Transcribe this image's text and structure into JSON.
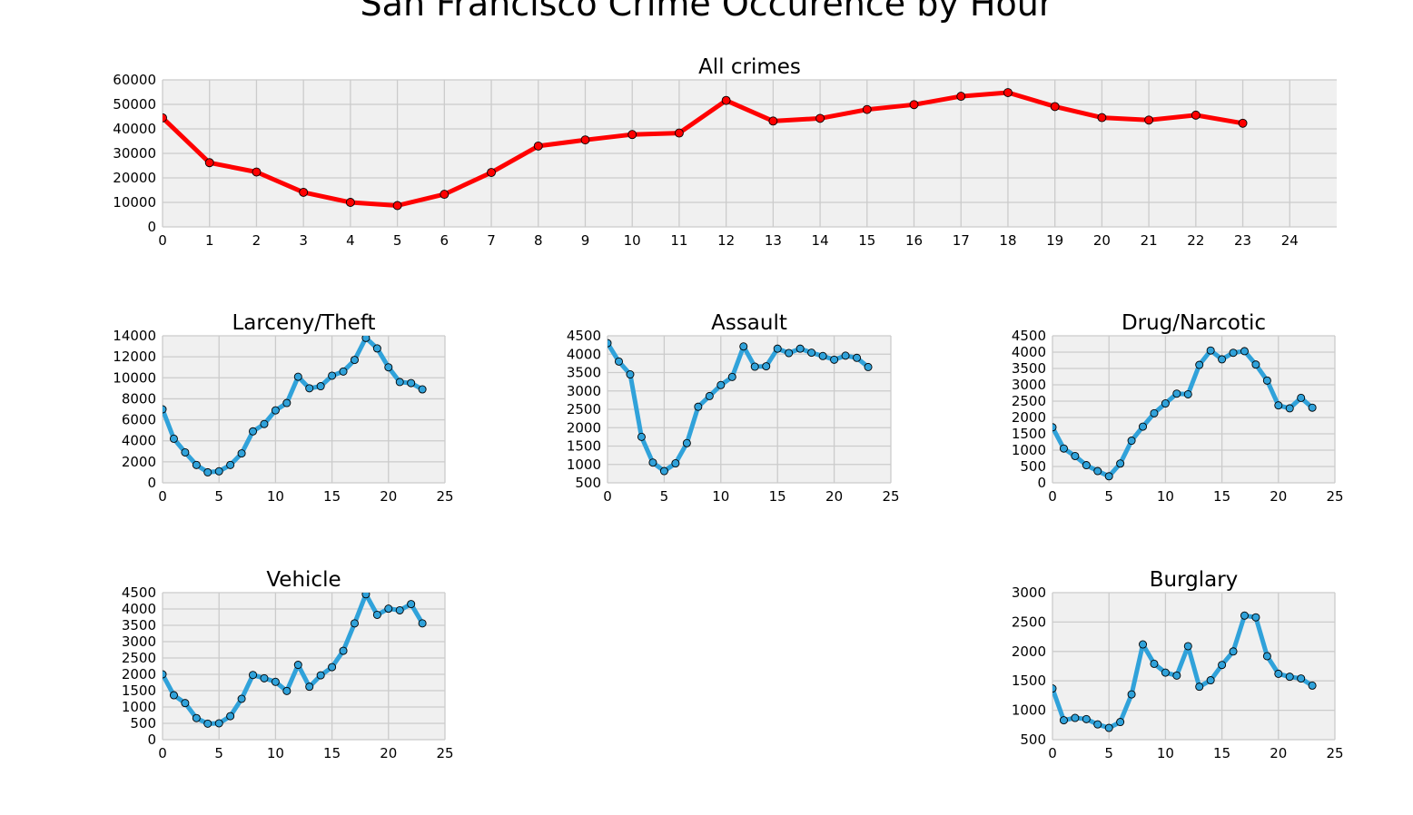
{
  "figure_title": "San Francisco Crime Occurence by Hour",
  "chart_data": [
    {
      "type": "line",
      "title": "All crimes",
      "color": "#ff0000",
      "x": [
        0,
        1,
        2,
        3,
        4,
        5,
        6,
        7,
        8,
        9,
        10,
        11,
        12,
        13,
        14,
        15,
        16,
        17,
        18,
        19,
        20,
        21,
        22,
        23
      ],
      "values": [
        44500,
        26200,
        22400,
        14100,
        10000,
        8700,
        13300,
        22200,
        33000,
        35500,
        37700,
        38300,
        51600,
        43200,
        44300,
        47900,
        49900,
        53300,
        54800,
        49100,
        44600,
        43600,
        45600,
        42300
      ],
      "xlim": [
        0,
        25
      ],
      "ylim": [
        0,
        60000
      ],
      "xticks": [
        0,
        1,
        2,
        3,
        4,
        5,
        6,
        7,
        8,
        9,
        10,
        11,
        12,
        13,
        14,
        15,
        16,
        17,
        18,
        19,
        20,
        21,
        22,
        23,
        24
      ],
      "yticks": [
        0,
        10000,
        20000,
        30000,
        40000,
        50000,
        60000
      ],
      "grid": true
    },
    {
      "type": "line",
      "title": "Larceny/Theft",
      "color": "#30a2da",
      "x": [
        0,
        1,
        2,
        3,
        4,
        5,
        6,
        7,
        8,
        9,
        10,
        11,
        12,
        13,
        14,
        15,
        16,
        17,
        18,
        19,
        20,
        21,
        22,
        23
      ],
      "values": [
        7000,
        4200,
        2900,
        1700,
        1000,
        1100,
        1700,
        2800,
        4900,
        5600,
        6900,
        7600,
        10100,
        9000,
        9200,
        10200,
        10600,
        11700,
        13800,
        12800,
        11000,
        9600,
        9500,
        8900
      ],
      "xlim": [
        0,
        25
      ],
      "ylim": [
        0,
        14000
      ],
      "xticks": [
        0,
        5,
        10,
        15,
        20,
        25
      ],
      "yticks": [
        0,
        2000,
        4000,
        6000,
        8000,
        10000,
        12000,
        14000
      ],
      "grid": true
    },
    {
      "type": "line",
      "title": "Assault",
      "color": "#30a2da",
      "x": [
        0,
        1,
        2,
        3,
        4,
        5,
        6,
        7,
        8,
        9,
        10,
        11,
        12,
        13,
        14,
        15,
        16,
        17,
        18,
        19,
        20,
        21,
        22,
        23
      ],
      "values": [
        4300,
        3800,
        3450,
        1750,
        1050,
        820,
        1030,
        1580,
        2570,
        2860,
        3160,
        3380,
        4210,
        3660,
        3670,
        4150,
        4030,
        4150,
        4040,
        3950,
        3850,
        3960,
        3900,
        3650
      ],
      "xlim": [
        0,
        25
      ],
      "ylim": [
        500,
        4500
      ],
      "xticks": [
        0,
        5,
        10,
        15,
        20,
        25
      ],
      "yticks": [
        500,
        1000,
        1500,
        2000,
        2500,
        3000,
        3500,
        4000,
        4500
      ],
      "grid": true
    },
    {
      "type": "line",
      "title": "Drug/Narcotic",
      "color": "#30a2da",
      "x": [
        0,
        1,
        2,
        3,
        4,
        5,
        6,
        7,
        8,
        9,
        10,
        11,
        12,
        13,
        14,
        15,
        16,
        17,
        18,
        19,
        20,
        21,
        22,
        23
      ],
      "values": [
        1700,
        1050,
        820,
        540,
        360,
        200,
        590,
        1290,
        1720,
        2130,
        2430,
        2730,
        2710,
        3610,
        4050,
        3780,
        3980,
        4030,
        3620,
        3130,
        2370,
        2280,
        2600,
        2300
      ],
      "xlim": [
        0,
        25
      ],
      "ylim": [
        0,
        4500
      ],
      "xticks": [
        0,
        5,
        10,
        15,
        20,
        25
      ],
      "yticks": [
        0,
        500,
        1000,
        1500,
        2000,
        2500,
        3000,
        3500,
        4000,
        4500
      ],
      "grid": true
    },
    {
      "type": "line",
      "title": "Vehicle",
      "color": "#30a2da",
      "x": [
        0,
        1,
        2,
        3,
        4,
        5,
        6,
        7,
        8,
        9,
        10,
        11,
        12,
        13,
        14,
        15,
        16,
        17,
        18,
        19,
        20,
        21,
        22,
        23
      ],
      "values": [
        2000,
        1360,
        1120,
        660,
        490,
        500,
        720,
        1250,
        1980,
        1880,
        1770,
        1490,
        2290,
        1620,
        1970,
        2220,
        2720,
        3560,
        4450,
        3820,
        4010,
        3960,
        4150,
        3560
      ],
      "xlim": [
        0,
        25
      ],
      "ylim": [
        0,
        4500
      ],
      "xticks": [
        0,
        5,
        10,
        15,
        20,
        25
      ],
      "yticks": [
        0,
        500,
        1000,
        1500,
        2000,
        2500,
        3000,
        3500,
        4000,
        4500
      ],
      "grid": true
    },
    {
      "type": "line",
      "title": "Burglary",
      "color": "#30a2da",
      "x": [
        0,
        1,
        2,
        3,
        4,
        5,
        6,
        7,
        8,
        9,
        10,
        11,
        12,
        13,
        14,
        15,
        16,
        17,
        18,
        19,
        20,
        21,
        22,
        23
      ],
      "values": [
        1370,
        830,
        870,
        850,
        760,
        700,
        800,
        1270,
        2120,
        1790,
        1640,
        1590,
        2090,
        1400,
        1510,
        1770,
        2000,
        2610,
        2580,
        1920,
        1620,
        1570,
        1540,
        1420
      ],
      "xlim": [
        0,
        25
      ],
      "ylim": [
        500,
        3000
      ],
      "xticks": [
        0,
        5,
        10,
        15,
        20,
        25
      ],
      "yticks": [
        500,
        1000,
        1500,
        2000,
        2500,
        3000
      ],
      "grid": true
    }
  ]
}
